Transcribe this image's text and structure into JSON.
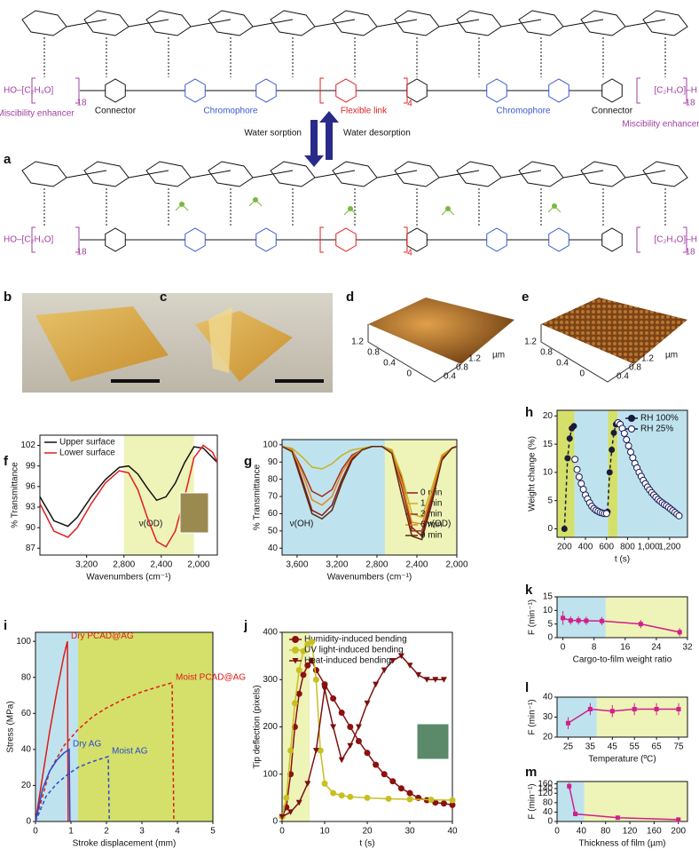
{
  "panel_labels": [
    "a",
    "b",
    "c",
    "d",
    "e",
    "f",
    "g",
    "h",
    "i",
    "j",
    "k",
    "l",
    "m"
  ],
  "diagram": {
    "top_left_end": "HO–[C₂H₄O]",
    "top_left_n": "18",
    "top_link_n": "4",
    "top_right_end": "[C₂H₄O]–H",
    "top_right_n": "18",
    "bottom_left_end": "HO–[C₂H₄O]",
    "bottom_left_n": "18",
    "bottom_link_n": "4",
    "bottom_right_end": "[C₂H₄O]–H",
    "bottom_right_n": "18",
    "miscibility_left": "Miscibility enhancer",
    "connector_left": "Connector",
    "chromophore_left": "Chromophore",
    "flexible_link": "Flexible link",
    "chromophore_right": "Chromophore",
    "connector_right": "Connector",
    "miscibility_right": "Miscibility enhancer",
    "water_sorption": "Water sorption",
    "water_desorption": "Water desorption"
  },
  "afm": {
    "d": {
      "ticks_left": [
        "1.2",
        "0.8",
        "0.4",
        "0"
      ],
      "ticks_right": [
        "0.4",
        "0.8",
        "1.2"
      ],
      "unit": "µm"
    },
    "e": {
      "ticks_left": [
        "1.2",
        "0.8",
        "0.4",
        "0"
      ],
      "ticks_right": [
        "0.4",
        "0.8",
        "1.2"
      ],
      "unit": "µm"
    }
  },
  "chart_data": [
    {
      "type": "line",
      "panel": "f",
      "xlabel": "Wavenumbers (cm⁻¹)",
      "ylabel": "% Transmittance",
      "xlim": [
        3700,
        1800
      ],
      "ylim": [
        86,
        103.5
      ],
      "xticks": [
        {
          "value": 3200,
          "label": "3,200"
        },
        {
          "value": 2800,
          "label": "2,800"
        },
        {
          "value": 2400,
          "label": "2,400"
        },
        {
          "value": 2000,
          "label": "2,000"
        }
      ],
      "yticks": [
        87,
        90,
        93,
        96,
        99,
        102
      ],
      "regions": [
        {
          "from": 2800,
          "to": 2050,
          "color": "#eef3b8"
        }
      ],
      "legend": "top-left",
      "annotations": [
        "ν(OD)"
      ],
      "x": [
        3700,
        3550,
        3400,
        3300,
        3150,
        3000,
        2850,
        2750,
        2650,
        2550,
        2450,
        2350,
        2250,
        2150,
        2050,
        1950,
        1850,
        1800
      ],
      "series": [
        {
          "name": "Upper surface",
          "color": "#111111",
          "values": [
            94.5,
            91,
            90.2,
            91.5,
            94.5,
            97,
            98.8,
            99,
            97.8,
            95.8,
            94,
            94.5,
            96.5,
            99.5,
            101.8,
            101.6,
            100.2,
            99.5
          ]
        },
        {
          "name": "Lower surface",
          "color": "#e02020",
          "values": [
            93.5,
            89.5,
            88.6,
            90,
            93.5,
            96.5,
            98.3,
            98,
            95.5,
            91.5,
            88,
            87.2,
            89.5,
            94.5,
            100.2,
            102,
            101,
            99.5
          ]
        }
      ]
    },
    {
      "type": "line",
      "panel": "g",
      "xlabel": "Wavenumbers (cm⁻¹)",
      "ylabel": "% Transmittance",
      "xlim": [
        3750,
        2000
      ],
      "ylim": [
        36,
        103
      ],
      "xticks": [
        {
          "value": 3600,
          "label": "3,600"
        },
        {
          "value": 3200,
          "label": "3,200"
        },
        {
          "value": 2800,
          "label": "2,800"
        },
        {
          "value": 2400,
          "label": "2,400"
        },
        {
          "value": 2000,
          "label": "2,000"
        }
      ],
      "yticks": [
        40,
        50,
        60,
        70,
        80,
        90,
        100
      ],
      "regions": [
        {
          "from": 3750,
          "to": 2720,
          "color": "#bfe3ee"
        },
        {
          "from": 2720,
          "to": 2000,
          "color": "#eef3b8"
        }
      ],
      "legend": "right",
      "annotations": [
        "ν(OH)",
        "ν(OD)"
      ],
      "x": [
        3750,
        3650,
        3550,
        3450,
        3350,
        3250,
        3150,
        3050,
        2950,
        2850,
        2750,
        2650,
        2550,
        2450,
        2350,
        2250,
        2150,
        2050,
        2000
      ],
      "series": [
        {
          "name": "0 min",
          "color": "#8b1a1a",
          "values": [
            99,
            97,
            80,
            62,
            59,
            65,
            80,
            92,
            97,
            99,
            99,
            97,
            80,
            52,
            47,
            68,
            92,
            98,
            99
          ]
        },
        {
          "name": "1 min",
          "color": "#c8b020",
          "values": [
            99,
            98,
            93,
            87,
            86,
            89,
            94,
            97,
            98,
            99,
            99,
            97,
            82,
            60,
            58,
            75,
            94,
            98,
            99
          ]
        },
        {
          "name": "3 min",
          "color": "#a03020",
          "values": [
            99,
            97,
            86,
            73,
            70,
            74,
            86,
            94,
            97,
            99,
            99,
            96,
            75,
            50,
            50,
            70,
            93,
            98,
            99
          ]
        },
        {
          "name": "6 min",
          "color": "#e08a20",
          "values": [
            99,
            97,
            84,
            68,
            65,
            70,
            84,
            93,
            97,
            99,
            99,
            96,
            78,
            55,
            54,
            72,
            93,
            98,
            99
          ]
        },
        {
          "name": "9 min",
          "color": "#5a2a10",
          "values": [
            99,
            96,
            78,
            60,
            57,
            62,
            78,
            91,
            97,
            99,
            99,
            95,
            70,
            47,
            45,
            66,
            91,
            98,
            99
          ]
        }
      ]
    },
    {
      "type": "line",
      "panel": "h",
      "xlabel": "t (s)",
      "ylabel": "Weight change (%)",
      "xlim": [
        130,
        1370
      ],
      "ylim": [
        -1.5,
        21
      ],
      "xticks": [
        200,
        400,
        600,
        800,
        {
          "value": 1000,
          "label": "1,000"
        },
        {
          "value": 1200,
          "label": "1,200"
        }
      ],
      "yticks": [
        0,
        5,
        10,
        15,
        20
      ],
      "regions": [
        {
          "from": 130,
          "to": 295,
          "color": "#d4e06a"
        },
        {
          "from": 295,
          "to": 615,
          "color": "#bfe3ee"
        },
        {
          "from": 615,
          "to": 705,
          "color": "#d4e06a"
        },
        {
          "from": 705,
          "to": 1370,
          "color": "#bfe3ee"
        }
      ],
      "legend": "top-right",
      "series": [
        {
          "name": "RH 100%",
          "color": "#1a1a3a",
          "marker": "circle",
          "dash": true,
          "x": [
            200,
            230,
            250,
            270,
            290,
            null,
            610,
            630,
            650,
            670,
            690
          ],
          "values": [
            0,
            12.5,
            16,
            17.8,
            18.2,
            null,
            3,
            10,
            14,
            17,
            18.5
          ]
        },
        {
          "name": "RH  25%",
          "color": "#1a1a5a",
          "marker": "open-circle",
          "x": [
            300,
            320,
            340,
            360,
            380,
            400,
            420,
            440,
            460,
            480,
            500,
            520,
            540,
            560,
            580,
            600,
            null,
            710,
            730,
            750,
            770,
            790,
            810,
            830,
            850,
            870,
            890,
            910,
            930,
            950,
            970,
            990,
            1010,
            1030,
            1050,
            1070,
            1090,
            1110,
            1130,
            1150,
            1170,
            1190,
            1210,
            1230,
            1250,
            1270,
            1290
          ],
          "values": [
            12.3,
            10.5,
            9.2,
            8,
            7,
            6,
            5.3,
            4.6,
            4,
            3.6,
            3.3,
            3.1,
            2.9,
            2.8,
            2.7,
            2.7,
            null,
            18.8,
            18.5,
            17.8,
            16.9,
            15.8,
            14.7,
            13.6,
            12.6,
            11.6,
            10.8,
            10,
            9.3,
            8.6,
            8,
            7.4,
            6.9,
            6.4,
            6,
            5.6,
            5.2,
            4.9,
            4.6,
            4.3,
            4.1,
            3.8,
            3.5,
            3.2,
            2.9,
            2.6,
            2.3
          ]
        }
      ]
    },
    {
      "type": "line",
      "panel": "i",
      "xlabel": "Stroke displacement (mm)",
      "ylabel": "Stress (MPa)",
      "xlim": [
        0,
        5
      ],
      "ylim": [
        0,
        105
      ],
      "xticks": [
        0,
        1,
        2,
        3,
        4,
        5
      ],
      "yticks": [
        0,
        20,
        40,
        60,
        80,
        100
      ],
      "regions": [
        {
          "from": 0,
          "to": 1.2,
          "color": "#bfe3ee"
        },
        {
          "from": 1.2,
          "to": 5,
          "color": "#d4e06a"
        }
      ],
      "legend": "inline",
      "series": [
        {
          "name": "Dry PCAD@AG",
          "color": "#e01818",
          "x": [
            0,
            0.2,
            0.4,
            0.6,
            0.8,
            0.9,
            0.92
          ],
          "values": [
            0,
            25,
            50,
            72,
            92,
            100,
            0
          ]
        },
        {
          "name": "Moist PCAD@AG",
          "color": "#e01818",
          "dash": true,
          "x": [
            0,
            0.4,
            0.8,
            1.2,
            1.6,
            2,
            2.5,
            3,
            3.5,
            3.85,
            3.9
          ],
          "values": [
            0,
            28,
            42,
            51,
            58,
            63,
            68,
            72,
            75,
            77,
            0
          ]
        },
        {
          "name": "Dry AG",
          "color": "#2a4ac8",
          "x": [
            0,
            0.2,
            0.4,
            0.6,
            0.8,
            0.95,
            0.97
          ],
          "values": [
            0,
            18,
            28,
            34,
            38,
            40,
            0
          ]
        },
        {
          "name": "Moist AG",
          "color": "#2a4ac8",
          "dash": true,
          "x": [
            0,
            0.3,
            0.6,
            0.9,
            1.2,
            1.5,
            1.8,
            2.05,
            2.08
          ],
          "values": [
            0,
            14,
            21,
            26,
            30,
            32.5,
            34.5,
            36,
            0
          ]
        }
      ]
    },
    {
      "type": "line",
      "panel": "j",
      "xlabel": "t (s)",
      "ylabel": "Tip deflection (pixels)",
      "xlim": [
        0,
        40
      ],
      "ylim": [
        0,
        400
      ],
      "xticks": [
        0,
        10,
        20,
        30,
        40
      ],
      "yticks": [
        0,
        100,
        200,
        300,
        400
      ],
      "regions": [
        {
          "from": 0,
          "to": 6.5,
          "color": "#eef3b8"
        }
      ],
      "legend": "top",
      "series": [
        {
          "name": "Humidity-induced bending",
          "color": "#8b1010",
          "marker": "circle",
          "x": [
            0,
            1,
            2,
            3,
            4,
            5,
            6,
            7,
            8,
            10,
            12,
            14,
            16,
            18,
            20,
            22,
            24,
            26,
            28,
            30,
            32,
            34,
            36,
            38,
            40
          ],
          "values": [
            10,
            30,
            100,
            200,
            270,
            310,
            330,
            340,
            320,
            290,
            260,
            230,
            200,
            170,
            145,
            120,
            100,
            85,
            70,
            60,
            50,
            45,
            40,
            38,
            35
          ]
        },
        {
          "name": "UV light-induced bending",
          "color": "#c8c020",
          "marker": "circle",
          "x": [
            0,
            1,
            2,
            3,
            4,
            5,
            6,
            7,
            8,
            9,
            10,
            12,
            14,
            16,
            20,
            25,
            30,
            35,
            40
          ],
          "values": [
            10,
            50,
            150,
            250,
            320,
            360,
            375,
            380,
            300,
            150,
            80,
            60,
            55,
            52,
            50,
            48,
            47,
            46,
            45
          ]
        },
        {
          "name": "Heat-induced bending",
          "color": "#7a1010",
          "marker": "triangle",
          "x": [
            0,
            2,
            4,
            6,
            8,
            10,
            12,
            14,
            16,
            18,
            20,
            22,
            24,
            26,
            28,
            30,
            32,
            34,
            36,
            38
          ],
          "values": [
            10,
            20,
            40,
            80,
            150,
            280,
            200,
            130,
            160,
            200,
            250,
            290,
            320,
            340,
            350,
            330,
            310,
            300,
            300,
            300
          ]
        }
      ]
    },
    {
      "type": "line",
      "panel": "k",
      "xlabel": "Cargo-to-film weight ratio",
      "ylabel": "F (min⁻¹)",
      "xlim": [
        -1.5,
        32
      ],
      "ylim": [
        0,
        15
      ],
      "xticks": [
        0,
        8,
        16,
        24,
        32
      ],
      "yticks": [
        0,
        5,
        10,
        15
      ],
      "regions": [
        {
          "from": -1.5,
          "to": 11,
          "color": "#bfe3ee"
        },
        {
          "from": 11,
          "to": 32,
          "color": "#eef3b8"
        }
      ],
      "series": [
        {
          "color": "#d0208a",
          "marker": "square",
          "x": [
            0,
            2,
            4,
            6,
            10,
            20,
            30
          ],
          "values": [
            7.2,
            6.3,
            6.3,
            6.2,
            6.1,
            5,
            2
          ],
          "errors": [
            2.5,
            1.5,
            1.5,
            1.5,
            1.5,
            1.5,
            1.5
          ]
        }
      ]
    },
    {
      "type": "line",
      "panel": "l",
      "xlabel": "Temperature (ºC)",
      "ylabel": "F (min⁻¹)",
      "xlim": [
        20,
        79
      ],
      "ylim": [
        20,
        40
      ],
      "xticks": [
        25,
        35,
        45,
        55,
        65,
        75
      ],
      "yticks": [
        20,
        30,
        40
      ],
      "regions": [
        {
          "from": 20,
          "to": 38,
          "color": "#bfe3ee"
        },
        {
          "from": 38,
          "to": 79,
          "color": "#eef3b8"
        }
      ],
      "series": [
        {
          "color": "#d0208a",
          "marker": "square",
          "x": [
            25,
            35,
            45,
            55,
            65,
            75
          ],
          "values": [
            27,
            34,
            33,
            34,
            34,
            34
          ],
          "errors": [
            3,
            3,
            3,
            3,
            3,
            3
          ]
        }
      ]
    },
    {
      "type": "line",
      "panel": "m",
      "xlabel": "Thickness of film (µm)",
      "ylabel": "F (min⁻¹)",
      "xlim": [
        0,
        215
      ],
      "ylim": [
        0,
        170
      ],
      "xticks": [
        0,
        40,
        80,
        120,
        160,
        200
      ],
      "yticks": [
        0,
        40,
        80,
        120,
        140,
        160
      ],
      "regions": [
        {
          "from": 0,
          "to": 45,
          "color": "#bfe3ee"
        },
        {
          "from": 45,
          "to": 215,
          "color": "#eef3b8"
        }
      ],
      "series": [
        {
          "color": "#d0208a",
          "marker": "square",
          "x": [
            20,
            30,
            100,
            200
          ],
          "values": [
            150,
            32,
            16,
            8
          ],
          "errors": [
            15,
            8,
            3,
            3
          ]
        }
      ]
    }
  ]
}
